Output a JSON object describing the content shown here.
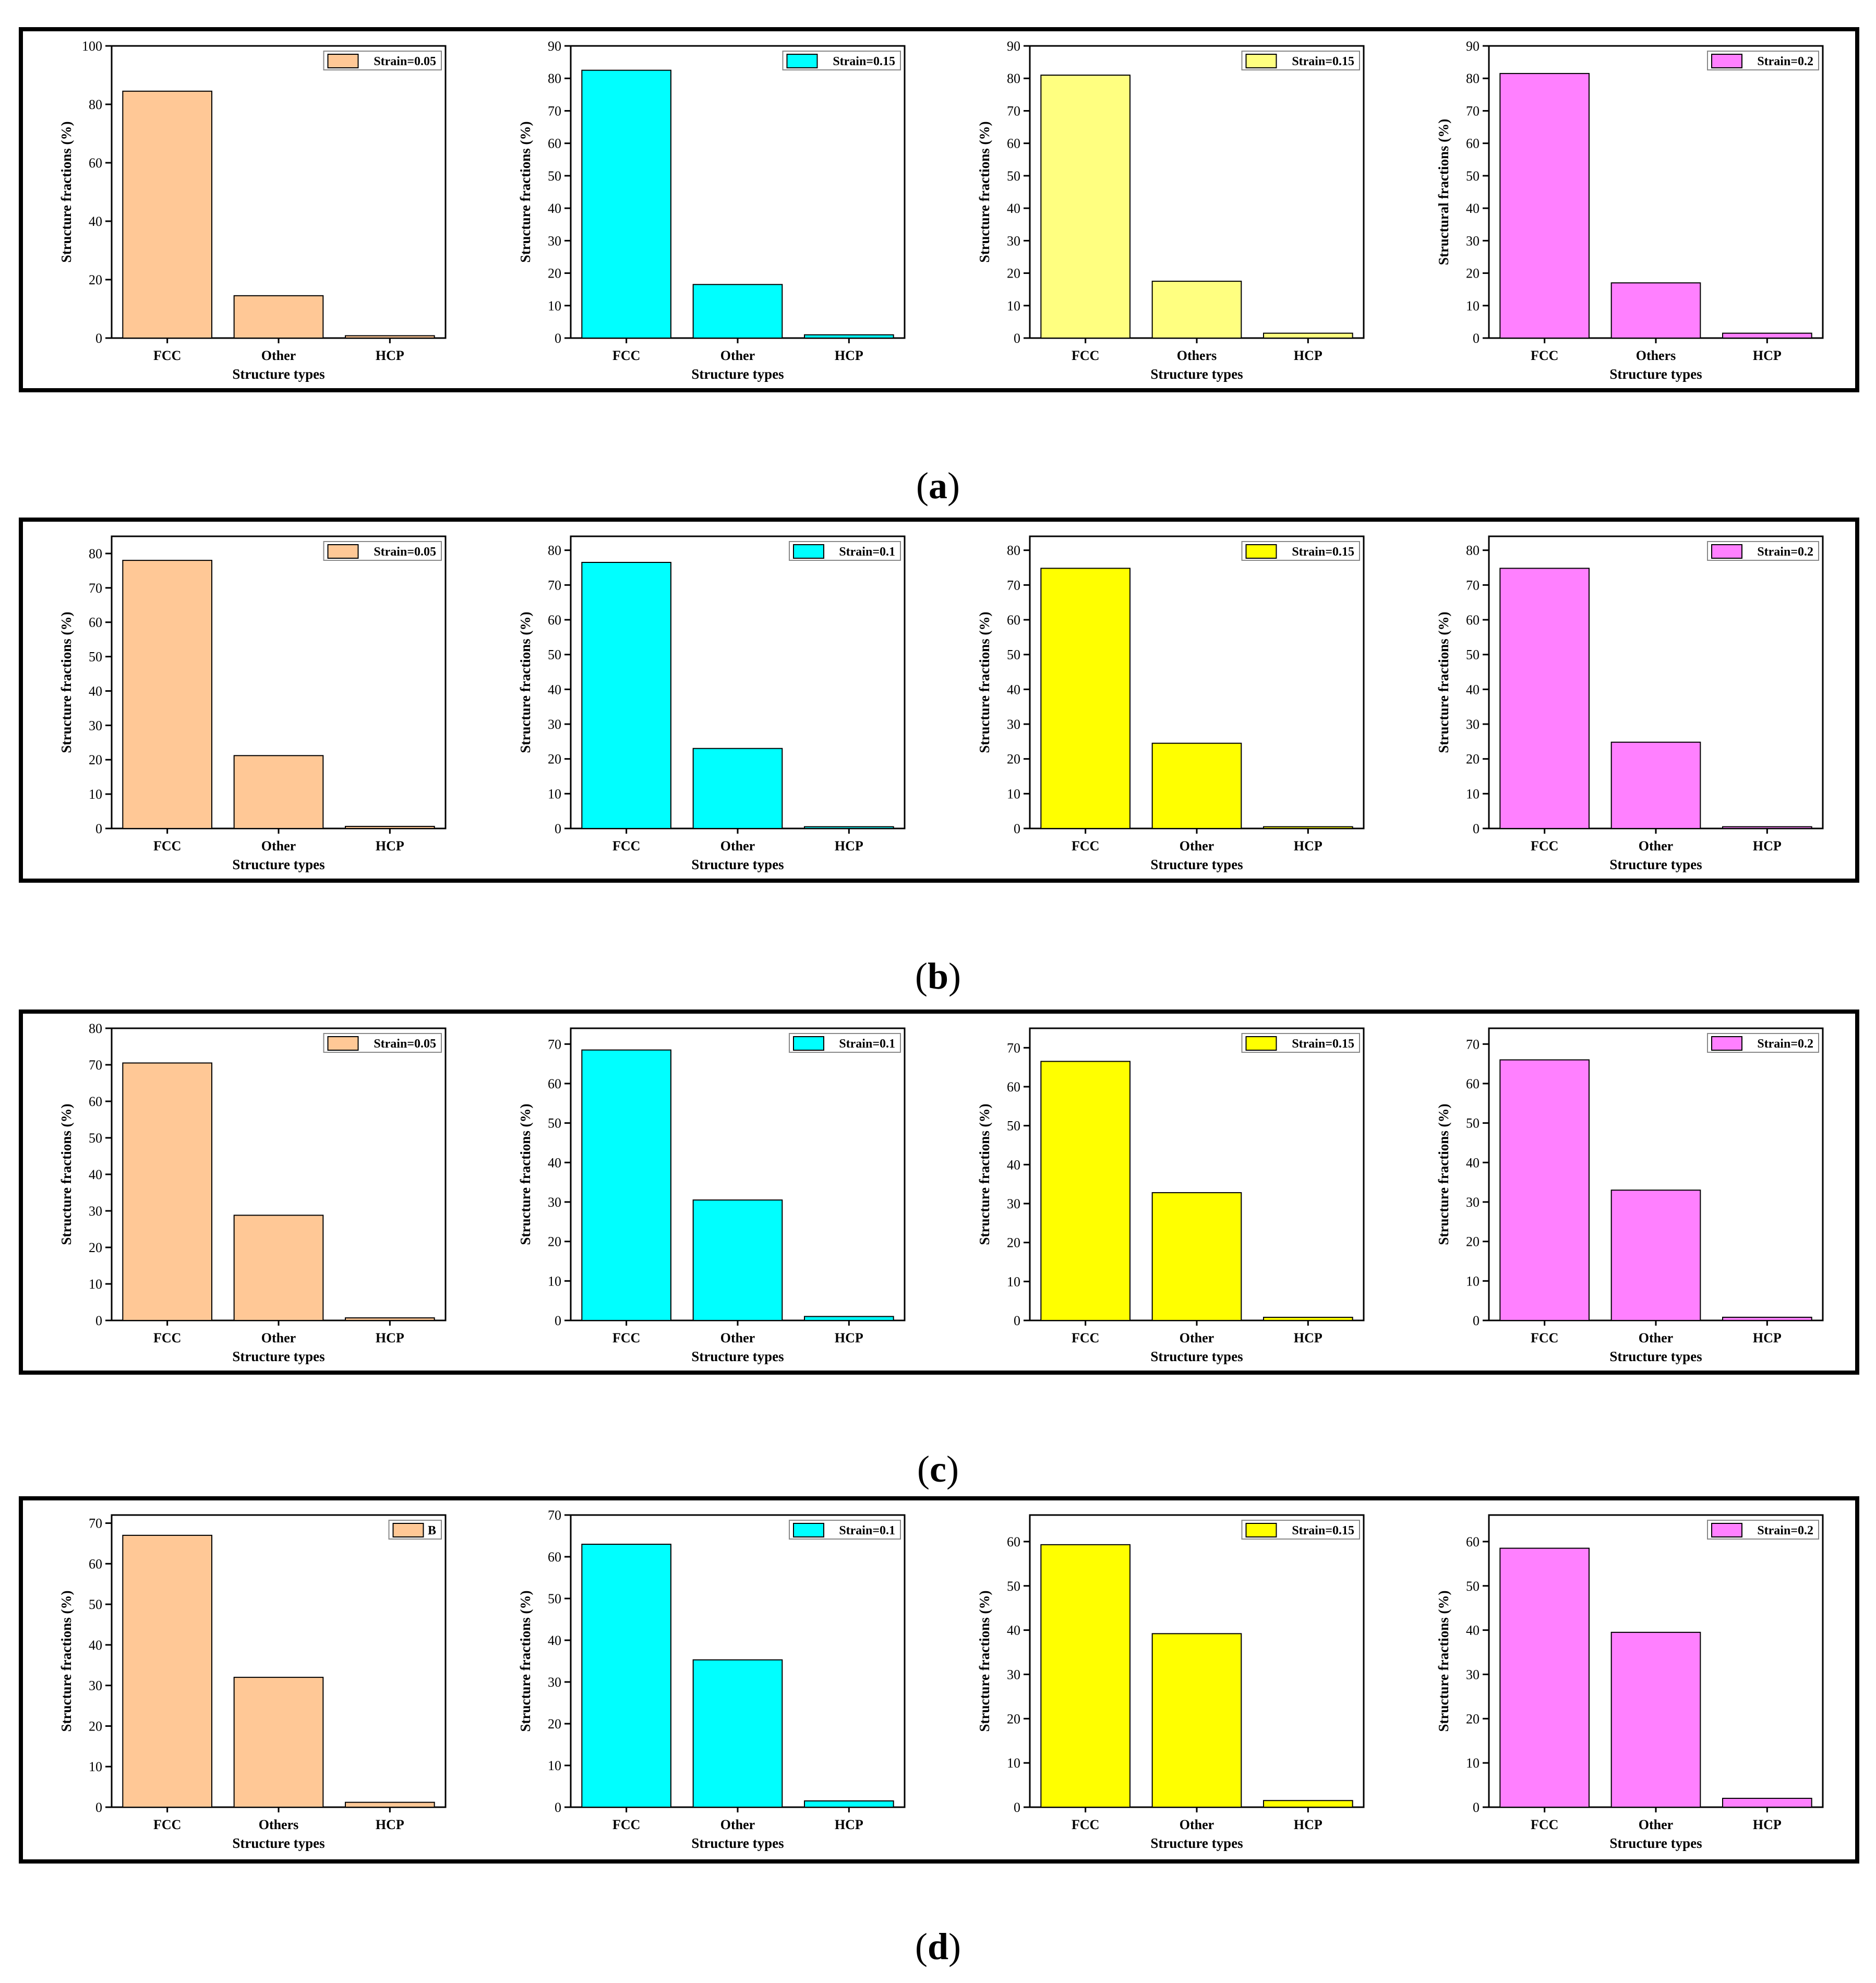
{
  "panels": [
    {
      "label": "a",
      "charts": [
        {
          "type": "bar",
          "categories": [
            "FCC",
            "Other",
            "HCP"
          ],
          "values": [
            84.5,
            14.5,
            0.8
          ],
          "ylim": [
            0,
            100
          ],
          "yticks": [
            0,
            20,
            40,
            60,
            80,
            100
          ],
          "ylabel": "Structure fractions (%)",
          "xlabel": "Structure types",
          "legend": "Strain=0.05",
          "color": "#FFC896"
        },
        {
          "type": "bar",
          "categories": [
            "FCC",
            "Other",
            "HCP"
          ],
          "values": [
            82.5,
            16.5,
            1.0
          ],
          "ylim": [
            0,
            90
          ],
          "yticks": [
            0,
            10,
            20,
            30,
            40,
            50,
            60,
            70,
            80,
            90
          ],
          "ylabel": "Structure fractions (%)",
          "xlabel": "Structure types",
          "legend": "Strain=0.15",
          "color": "#00FFFF"
        },
        {
          "type": "bar",
          "categories": [
            "FCC",
            "Others",
            "HCP"
          ],
          "values": [
            81.0,
            17.5,
            1.5
          ],
          "ylim": [
            0,
            90
          ],
          "yticks": [
            0,
            10,
            20,
            30,
            40,
            50,
            60,
            70,
            80,
            90
          ],
          "ylabel": "Structure fractions (%)",
          "xlabel": "Structure types",
          "legend": "Strain=0.15",
          "color": "#FFFF80"
        },
        {
          "type": "bar",
          "categories": [
            "FCC",
            "Others",
            "HCP"
          ],
          "values": [
            81.5,
            17.0,
            1.5
          ],
          "ylim": [
            0,
            90
          ],
          "yticks": [
            0,
            10,
            20,
            30,
            40,
            50,
            60,
            70,
            80,
            90
          ],
          "ylabel": "Structural fractions (%)",
          "xlabel": "Structure types",
          "legend": "Strain=0.2",
          "color": "#FF80FF"
        }
      ]
    },
    {
      "label": "b",
      "charts": [
        {
          "type": "bar",
          "categories": [
            "FCC",
            "Other",
            "HCP"
          ],
          "values": [
            78.0,
            21.2,
            0.6
          ],
          "ylim": [
            0,
            85
          ],
          "yticks": [
            0,
            10,
            20,
            30,
            40,
            50,
            60,
            70,
            80
          ],
          "ylabel": "Structure fractions (%)",
          "xlabel": "Structure types",
          "legend": "Strain=0.05",
          "color": "#FFC896"
        },
        {
          "type": "bar",
          "categories": [
            "FCC",
            "Other",
            "HCP"
          ],
          "values": [
            76.5,
            23.0,
            0.5
          ],
          "ylim": [
            0,
            84
          ],
          "yticks": [
            0,
            10,
            20,
            30,
            40,
            50,
            60,
            70,
            80
          ],
          "ylabel": "Structure fractions (%)",
          "xlabel": "Structure types",
          "legend": "Strain=0.1",
          "color": "#00FFFF"
        },
        {
          "type": "bar",
          "categories": [
            "FCC",
            "Other",
            "HCP"
          ],
          "values": [
            74.8,
            24.5,
            0.5
          ],
          "ylim": [
            0,
            84
          ],
          "yticks": [
            0,
            10,
            20,
            30,
            40,
            50,
            60,
            70,
            80
          ],
          "ylabel": "Structure fractions (%)",
          "xlabel": "Structure types",
          "legend": "Strain=0.15",
          "color": "#FFFF00"
        },
        {
          "type": "bar",
          "categories": [
            "FCC",
            "Other",
            "HCP"
          ],
          "values": [
            74.8,
            24.8,
            0.5
          ],
          "ylim": [
            0,
            84
          ],
          "yticks": [
            0,
            10,
            20,
            30,
            40,
            50,
            60,
            70,
            80
          ],
          "ylabel": "Structure fractions (%)",
          "xlabel": "Structure types",
          "legend": "Strain=0.2",
          "color": "#FF80FF"
        }
      ]
    },
    {
      "label": "c",
      "charts": [
        {
          "type": "bar",
          "categories": [
            "FCC",
            "Other",
            "HCP"
          ],
          "values": [
            70.5,
            28.8,
            0.7
          ],
          "ylim": [
            0,
            80
          ],
          "yticks": [
            0,
            10,
            20,
            30,
            40,
            50,
            60,
            70,
            80
          ],
          "ylabel": "Structure fractions (%)",
          "xlabel": "Structure types",
          "legend": "Strain=0.05",
          "color": "#FFC896"
        },
        {
          "type": "bar",
          "categories": [
            "FCC",
            "Other",
            "HCP"
          ],
          "values": [
            68.5,
            30.5,
            1.0
          ],
          "ylim": [
            0,
            74
          ],
          "yticks": [
            0,
            10,
            20,
            30,
            40,
            50,
            60,
            70
          ],
          "ylabel": "Structure fractions (%)",
          "xlabel": "Structure types",
          "legend": "Strain=0.1",
          "color": "#00FFFF"
        },
        {
          "type": "bar",
          "categories": [
            "FCC",
            "Other",
            "HCP"
          ],
          "values": [
            66.5,
            32.8,
            0.8
          ],
          "ylim": [
            0,
            75
          ],
          "yticks": [
            0,
            10,
            20,
            30,
            40,
            50,
            60,
            70
          ],
          "ylabel": "Structure fractions (%)",
          "xlabel": "Structure types",
          "legend": "Strain=0.15",
          "color": "#FFFF00"
        },
        {
          "type": "bar",
          "categories": [
            "FCC",
            "Other",
            "HCP"
          ],
          "values": [
            66.0,
            33.0,
            0.8
          ],
          "ylim": [
            0,
            74
          ],
          "yticks": [
            0,
            10,
            20,
            30,
            40,
            50,
            60,
            70
          ],
          "ylabel": "Structure fractions (%)",
          "xlabel": "Structure types",
          "legend": "Strain=0.2",
          "color": "#FF80FF"
        }
      ]
    },
    {
      "label": "d",
      "charts": [
        {
          "type": "bar",
          "categories": [
            "FCC",
            "Others",
            "HCP"
          ],
          "values": [
            67.0,
            32.0,
            1.2
          ],
          "ylim": [
            0,
            72
          ],
          "yticks": [
            0,
            10,
            20,
            30,
            40,
            50,
            60,
            70
          ],
          "ylabel": "Structure fractions (%)",
          "xlabel": "Structure types",
          "legend": "B",
          "color": "#FFC896"
        },
        {
          "type": "bar",
          "categories": [
            "FCC",
            "Other",
            "HCP"
          ],
          "values": [
            63.0,
            35.3,
            1.5
          ],
          "ylim": [
            0,
            70
          ],
          "yticks": [
            0,
            10,
            20,
            30,
            40,
            50,
            60,
            70
          ],
          "ylabel": "Structure fractions (%)",
          "xlabel": "Structure types",
          "legend": "Strain=0.1",
          "color": "#00FFFF"
        },
        {
          "type": "bar",
          "categories": [
            "FCC",
            "Other",
            "HCP"
          ],
          "values": [
            59.3,
            39.2,
            1.5
          ],
          "ylim": [
            0,
            66
          ],
          "yticks": [
            0,
            10,
            20,
            30,
            40,
            50,
            60
          ],
          "ylabel": "Structure fractions (%)",
          "xlabel": "Structure types",
          "legend": "Strain=0.15",
          "color": "#FFFF00"
        },
        {
          "type": "bar",
          "categories": [
            "FCC",
            "Other",
            "HCP"
          ],
          "values": [
            58.5,
            39.5,
            2.0
          ],
          "ylim": [
            0,
            66
          ],
          "yticks": [
            0,
            10,
            20,
            30,
            40,
            50,
            60
          ],
          "ylabel": "Structure fractions (%)",
          "xlabel": "Structure types",
          "legend": "Strain=0.2",
          "color": "#FF80FF"
        }
      ]
    }
  ]
}
